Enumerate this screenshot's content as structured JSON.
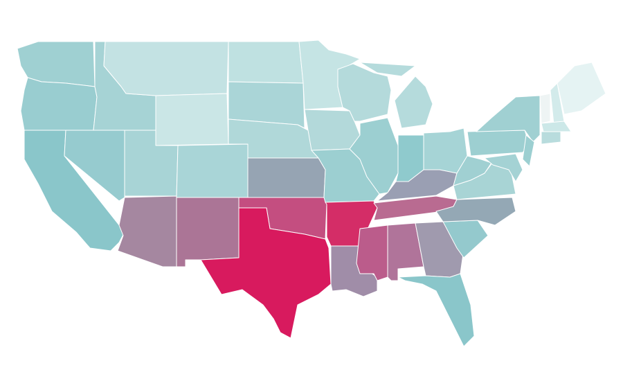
{
  "regions": [
    {
      "color": "#9fd0d2"
    },
    {
      "color": "#99cdd0"
    },
    {
      "color": "#8ac6ca"
    },
    {
      "color": "#96cbcf"
    },
    {
      "color": "#a6d3d5"
    },
    {
      "color": "#c3e2e3"
    },
    {
      "color": "#cae6e6"
    },
    {
      "color": "#a8d4d6"
    },
    {
      "color": "#a9d5d7"
    },
    {
      "color": "#a587a0"
    },
    {
      "color": "#ab7596"
    },
    {
      "color": "#bfe1e1"
    },
    {
      "color": "#aad5d7"
    },
    {
      "color": "#b0d8d9"
    },
    {
      "color": "#96a4b3"
    },
    {
      "color": "#c44e80"
    },
    {
      "color": "#d81a5e"
    },
    {
      "color": "#c5e4e4"
    },
    {
      "color": "#b3d9da"
    },
    {
      "color": "#9ccfd1"
    },
    {
      "color": "#d42d67"
    },
    {
      "color": "#a08da8"
    },
    {
      "color": "#b4dadb"
    },
    {
      "color": "#9ccfd1"
    },
    {
      "color": "#b5dbdc"
    },
    {
      "color": "#8fcacd"
    },
    {
      "color": "#a6d4d6"
    },
    {
      "color": "#9a9fb3"
    },
    {
      "color": "#b96b91"
    },
    {
      "color": "#bb5c8b"
    },
    {
      "color": "#b0749a"
    },
    {
      "color": "#a09aae"
    },
    {
      "color": "#8ac6ca"
    },
    {
      "color": "#94c9cd"
    },
    {
      "color": "#94a8b5"
    },
    {
      "color": "#a8d4d5"
    },
    {
      "color": "#a0d0d2"
    },
    {
      "color": "#9dcfd1"
    },
    {
      "color": "#a0d0d2"
    },
    {
      "color": "#a4d2d4"
    },
    {
      "color": "#9ccfd1"
    },
    {
      "color": "#eef4f4"
    },
    {
      "color": "#d3ebeb"
    },
    {
      "color": "#e5f3f3"
    },
    {
      "color": "#cce8e8"
    },
    {
      "color": "#b8dcdd"
    }
  ]
}
